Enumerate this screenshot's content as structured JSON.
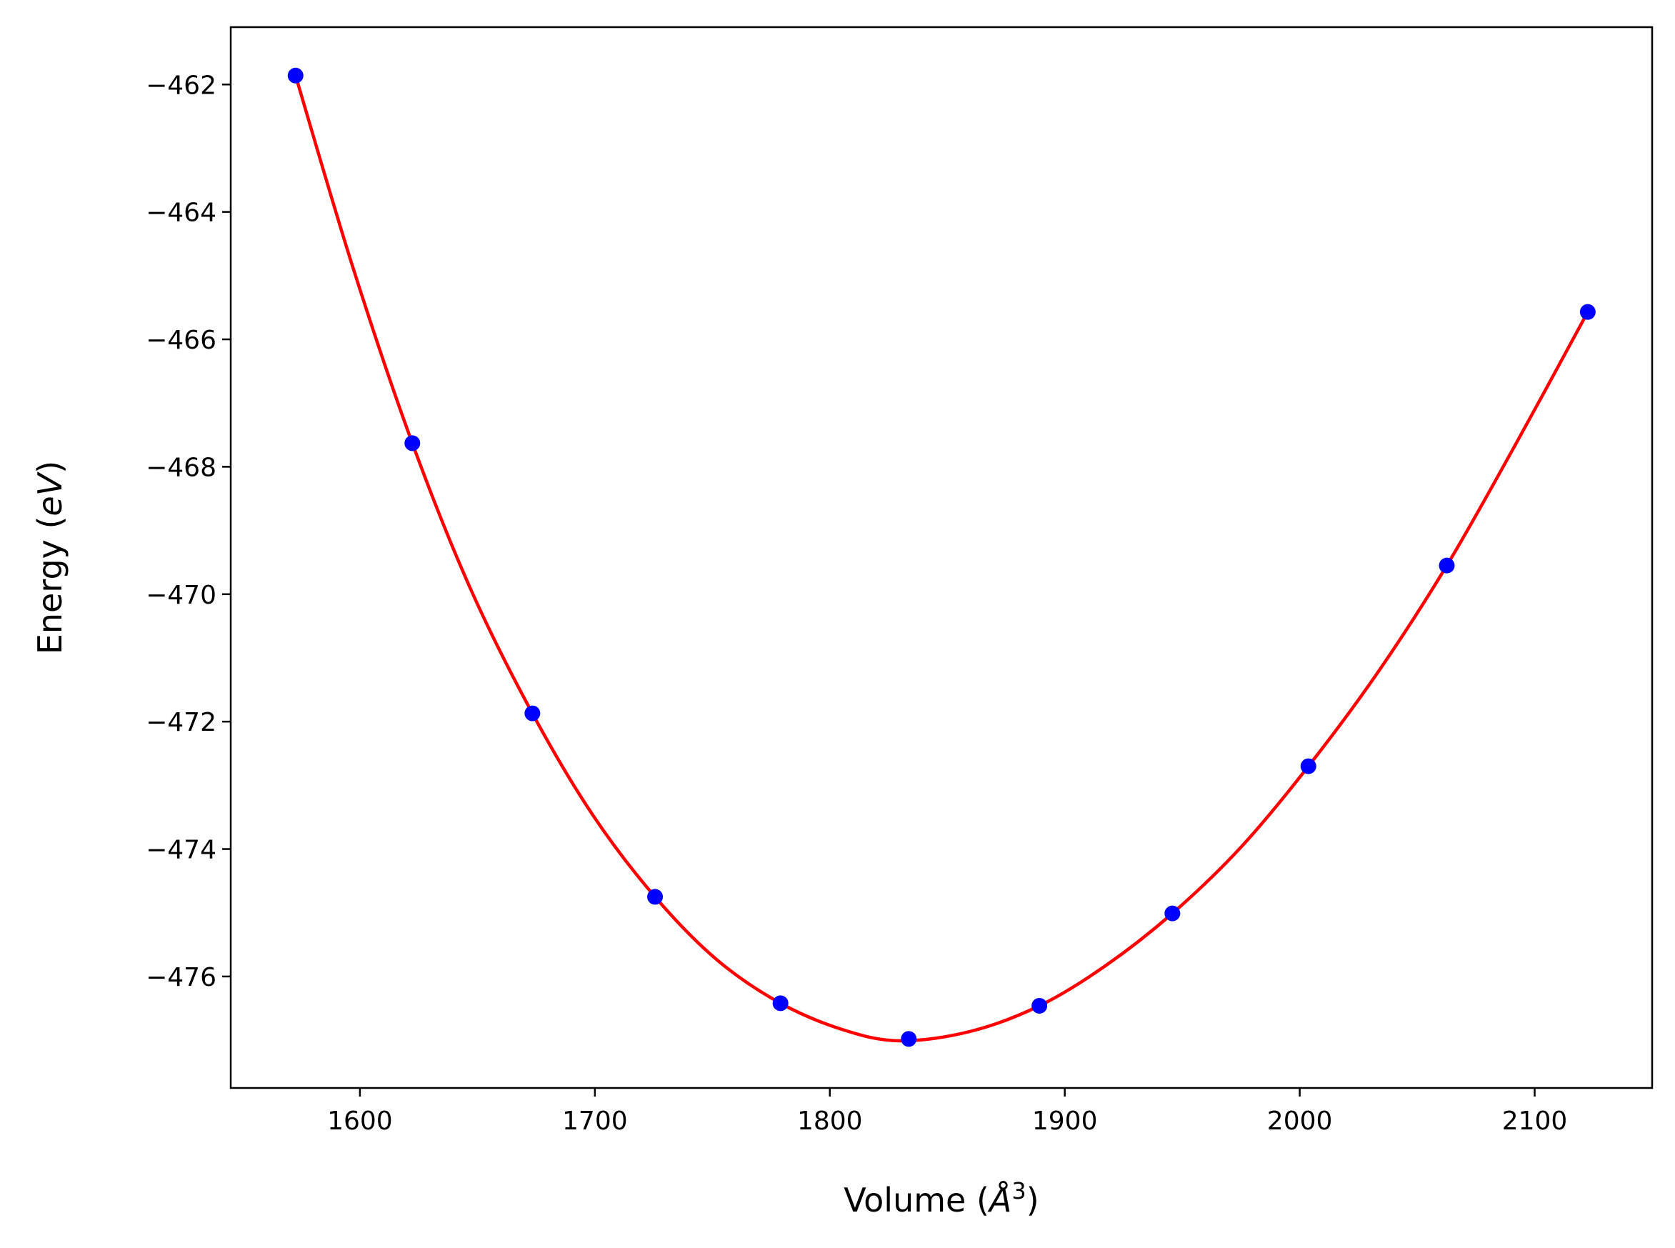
{
  "chart_data": {
    "type": "scatter",
    "title": "",
    "xlabel": "Volume",
    "xlabel_unit_letter": "Å",
    "xlabel_unit_power": "3",
    "ylabel": "Energy",
    "ylabel_unit": "eV",
    "xlim": [
      1545,
      2150
    ],
    "ylim": [
      -477.75,
      -461.1
    ],
    "x_ticks": [
      1600,
      1700,
      1800,
      1900,
      2000,
      2100
    ],
    "x_tick_labels": [
      "1600",
      "1700",
      "1800",
      "1900",
      "2000",
      "2100"
    ],
    "y_ticks": [
      -462,
      -464,
      -466,
      -468,
      -470,
      -472,
      -474,
      -476
    ],
    "y_tick_labels": [
      "−462",
      "−464",
      "−466",
      "−468",
      "−470",
      "−472",
      "−474",
      "−476"
    ],
    "grid": false,
    "series": [
      {
        "kind": "points",
        "color": "#0000ff",
        "x": [
          1572.6,
          1622.3,
          1673.4,
          1725.6,
          1779.0,
          1833.6,
          1889.2,
          1945.8,
          2003.7,
          2062.6,
          2122.6
        ],
        "y": [
          -461.86,
          -467.63,
          -471.87,
          -474.75,
          -476.42,
          -476.98,
          -476.46,
          -475.01,
          -472.7,
          -469.55,
          -465.57
        ]
      },
      {
        "kind": "fit-curve",
        "color": "#ff0000",
        "x": [
          1572.6,
          1597,
          1622.3,
          1647,
          1673.4,
          1699,
          1725.6,
          1752,
          1779.0,
          1806,
          1830,
          1860,
          1889.2,
          1917,
          1945.8,
          1975,
          2003.7,
          2033,
          2062.6,
          2092,
          2122.6
        ],
        "y": [
          -461.86,
          -464.87,
          -467.63,
          -469.91,
          -471.87,
          -473.46,
          -474.75,
          -475.74,
          -476.42,
          -476.84,
          -477.01,
          -476.86,
          -476.46,
          -475.84,
          -475.01,
          -473.97,
          -472.7,
          -471.24,
          -469.55,
          -467.64,
          -465.57
        ]
      }
    ]
  }
}
